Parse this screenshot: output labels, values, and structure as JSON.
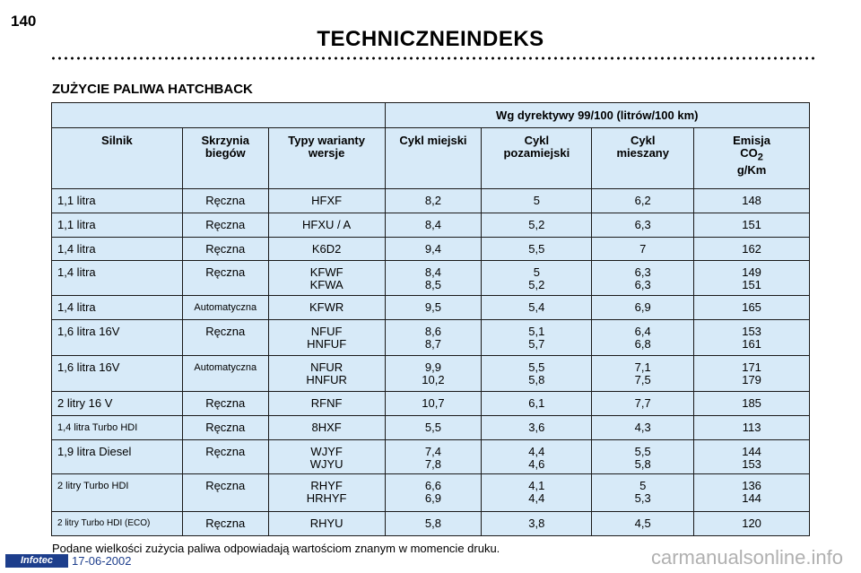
{
  "page_number": "140",
  "title": "TECHNICZNEINDEKS",
  "section_title": "ZUŻYCIE PALIWA HATCHBACK",
  "table": {
    "group_header": "Wg dyrektywy 99/100 (litrów/100 km)",
    "headers": {
      "engine": "Silnik",
      "gearbox": [
        "Skrzynia",
        "biegów"
      ],
      "variant": [
        "Typy warianty",
        "wersje"
      ],
      "city": [
        "Cykl miejski"
      ],
      "extra_urban": [
        "Cykl",
        "pozamiejski"
      ],
      "combined": [
        "Cykl",
        "mieszany"
      ],
      "emission": [
        "Emisja",
        "CO",
        "2",
        "g/Km"
      ]
    },
    "rows": [
      {
        "engine": "1,1 litra",
        "gearbox": "Ręczna",
        "variant": [
          "HFXF"
        ],
        "city": [
          "8,2"
        ],
        "extra": [
          "5"
        ],
        "combined": [
          "6,2"
        ],
        "co2": [
          "148"
        ],
        "row_h": 27
      },
      {
        "engine": "1,1 litra",
        "gearbox": "Ręczna",
        "variant": [
          "HFXU / A"
        ],
        "city": [
          "8,4"
        ],
        "extra": [
          "5,2"
        ],
        "combined": [
          "6,3"
        ],
        "co2": [
          "151"
        ],
        "row_h": 27
      },
      {
        "engine": "1,4 litra",
        "gearbox": "Ręczna",
        "variant": [
          "K6D2"
        ],
        "city": [
          "9,4"
        ],
        "extra": [
          "5,5"
        ],
        "combined": [
          "7"
        ],
        "co2": [
          "162"
        ],
        "row_h": 26
      },
      {
        "engine": "1,4 litra",
        "gearbox": "Ręczna",
        "variant": [
          "KFWF",
          "KFWA"
        ],
        "city": [
          "8,4",
          "8,5"
        ],
        "extra": [
          "5",
          "5,2"
        ],
        "combined": [
          "6,3",
          "6,3"
        ],
        "co2": [
          "149",
          "151"
        ],
        "row_h": 39
      },
      {
        "engine": "1,4 litra",
        "gearbox": "Automatyczna",
        "gearbox_small": true,
        "variant": [
          "KFWR"
        ],
        "city": [
          "9,5"
        ],
        "extra": [
          "5,4"
        ],
        "combined": [
          "6,9"
        ],
        "co2": [
          "165"
        ],
        "row_h": 27
      },
      {
        "engine": "1,6 litra 16V",
        "gearbox": "Ręczna",
        "variant": [
          "NFUF",
          "HNFUF"
        ],
        "city": [
          "8,6",
          "8,7"
        ],
        "extra": [
          "5,1",
          "5,7"
        ],
        "combined": [
          "6,4",
          "6,8"
        ],
        "co2": [
          "153",
          "161"
        ],
        "row_h": 40
      },
      {
        "engine": "1,6 litra 16V",
        "gearbox": "Automatyczna",
        "gearbox_small": true,
        "variant": [
          "NFUR",
          "HNFUR"
        ],
        "city": [
          "9,9",
          "10,2"
        ],
        "extra": [
          "5,5",
          "5,8"
        ],
        "combined": [
          "7,1",
          "7,5"
        ],
        "co2": [
          "171",
          "179"
        ],
        "row_h": 40
      },
      {
        "engine": "2 litry 16 V",
        "gearbox": "Ręczna",
        "variant": [
          "RFNF"
        ],
        "city": [
          "10,7"
        ],
        "extra": [
          "6,1"
        ],
        "combined": [
          "7,7"
        ],
        "co2": [
          "185"
        ],
        "row_h": 27
      },
      {
        "engine": "1,4 litra Turbo HDI",
        "engine_small": true,
        "gearbox": "Ręczna",
        "variant": [
          "8HXF"
        ],
        "city": [
          "5,5"
        ],
        "extra": [
          "3,6"
        ],
        "combined": [
          "4,3"
        ],
        "co2": [
          "113"
        ],
        "row_h": 27
      },
      {
        "engine": "1,9 litra Diesel",
        "gearbox": "Ręczna",
        "variant": [
          "WJYF",
          "WJYU"
        ],
        "city": [
          "7,4",
          "7,8"
        ],
        "extra": [
          "4,4",
          "4,6"
        ],
        "combined": [
          "5,5",
          "5,8"
        ],
        "co2": [
          "144",
          "153"
        ],
        "row_h": 38
      },
      {
        "engine": "2 litry Turbo HDI",
        "engine_small": true,
        "gearbox": "Ręczna",
        "variant": [
          "RHYF",
          "HRHYF"
        ],
        "city": [
          "6,6",
          "6,9"
        ],
        "extra": [
          "4,1",
          "4,4"
        ],
        "combined": [
          "5",
          "5,3"
        ],
        "co2": [
          "136",
          "144"
        ],
        "row_h": 42
      },
      {
        "engine": "2 litry Turbo HDI (ECO)",
        "engine_xsmall": true,
        "gearbox": "Ręczna",
        "variant": [
          "RHYU"
        ],
        "city": [
          "5,8"
        ],
        "extra": [
          "3,8"
        ],
        "combined": [
          "4,5"
        ],
        "co2": [
          "120"
        ],
        "row_h": 27
      }
    ]
  },
  "footnote": "Podane wielkości zużycia paliwa odpowiadają wartościom znanym w momencie druku.",
  "footer_logo": "Infotec",
  "footer_date": "17-06-2002",
  "watermark": "carmanualsonline.info"
}
